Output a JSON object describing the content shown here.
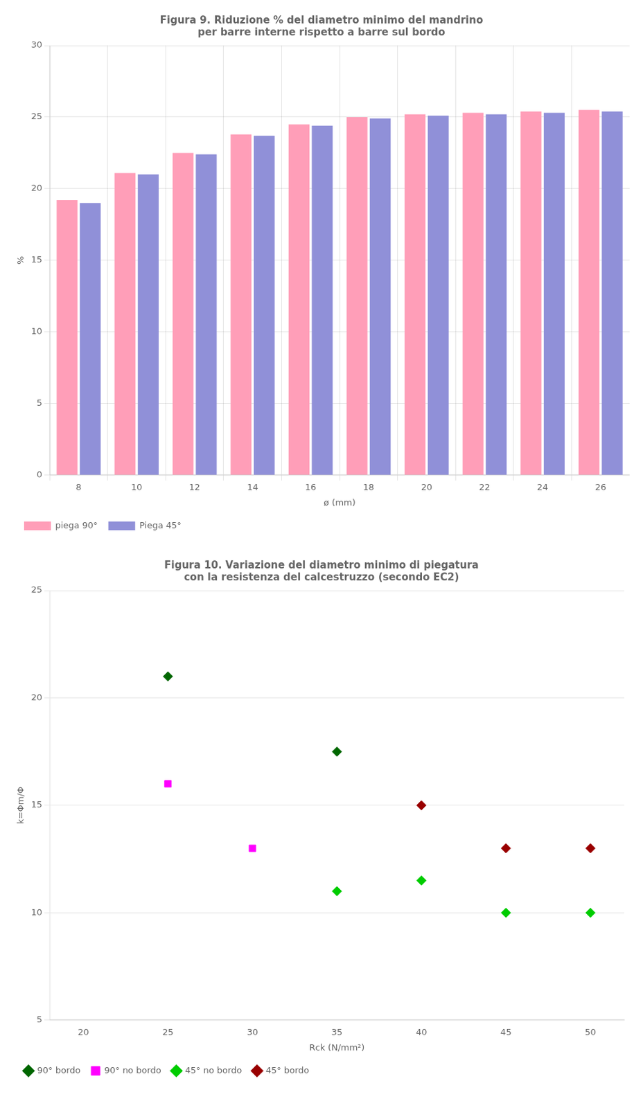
{
  "chart_data": [
    {
      "type": "bar",
      "title": "Figura 9. Riduzione % del diametro minimo del mandrino\nper barre interne rispetto a barre sul bordo",
      "x_label": "ø (mm)",
      "y_label": "%",
      "categories": [
        8,
        10,
        12,
        14,
        16,
        18,
        20,
        22,
        24,
        26
      ],
      "series": [
        {
          "name": "piega 90°",
          "color": "#FF9EB8",
          "values": [
            19.2,
            21.1,
            22.5,
            23.8,
            24.5,
            25.0,
            25.2,
            25.3,
            25.4,
            25.5
          ]
        },
        {
          "name": "Piega 45°",
          "color": "#9090D8",
          "values": [
            19.0,
            21.0,
            22.4,
            23.7,
            24.4,
            24.9,
            25.1,
            25.2,
            25.3,
            25.4
          ]
        }
      ],
      "ylim": [
        0,
        30
      ],
      "yticks": [
        0,
        5,
        10,
        15,
        20,
        25,
        30
      ],
      "grid": true,
      "legend": "lower left"
    },
    {
      "type": "scatter",
      "title": "Figura 10. Variazione del diametro minimo di piegatura\ncon la resistenza del calcestruzzo (secondo EC2)",
      "x_label": "Rck (N/mm²)",
      "y_label": "k=Φm/Φ",
      "series": [
        {
          "name": "90° bordo",
          "color": "#006600",
          "marker": "diamond",
          "x": [
            25,
            35
          ],
          "values": [
            21.0,
            17.5
          ]
        },
        {
          "name": "90° no bordo",
          "color": "#FF00FF",
          "marker": "square",
          "x": [
            25,
            30
          ],
          "values": [
            16.0,
            13.0
          ]
        },
        {
          "name": "45° no bordo",
          "color": "#00CC00",
          "marker": "diamond",
          "x": [
            35,
            40,
            45,
            50
          ],
          "values": [
            11.0,
            11.5,
            10.0,
            10.0
          ]
        },
        {
          "name": "45° bordo",
          "color": "#990000",
          "marker": "diamond",
          "x": [
            40,
            45,
            50
          ],
          "values": [
            15.0,
            13.0,
            13.0
          ]
        }
      ],
      "xlim": [
        18,
        52
      ],
      "xticks": [
        20,
        25,
        30,
        35,
        40,
        45,
        50
      ],
      "ylim": [
        5,
        25
      ],
      "yticks": [
        5,
        10,
        15,
        20,
        25
      ],
      "grid": "y",
      "legend": "lower left"
    }
  ]
}
